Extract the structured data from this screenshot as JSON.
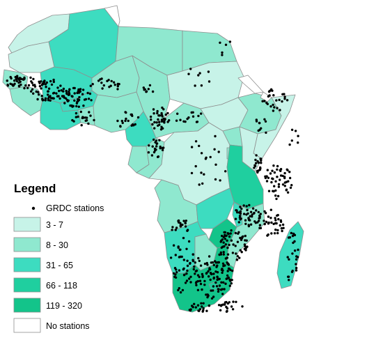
{
  "legend": {
    "title": "Legend",
    "stations_label": "GRDC stations",
    "classes": [
      {
        "label": "3 - 7",
        "color": "#c7f3e8"
      },
      {
        "label": "8 - 30",
        "color": "#8fe8cf"
      },
      {
        "label": "31 - 65",
        "color": "#3ddcc0"
      },
      {
        "label": "66 - 118",
        "color": "#1fcf9f"
      },
      {
        "label": "119 - 320",
        "color": "#13c48a"
      },
      {
        "label": "No stations",
        "color": "#ffffff"
      }
    ]
  },
  "colors": {
    "border": "#8e8e8e",
    "station": "#000000"
  }
}
